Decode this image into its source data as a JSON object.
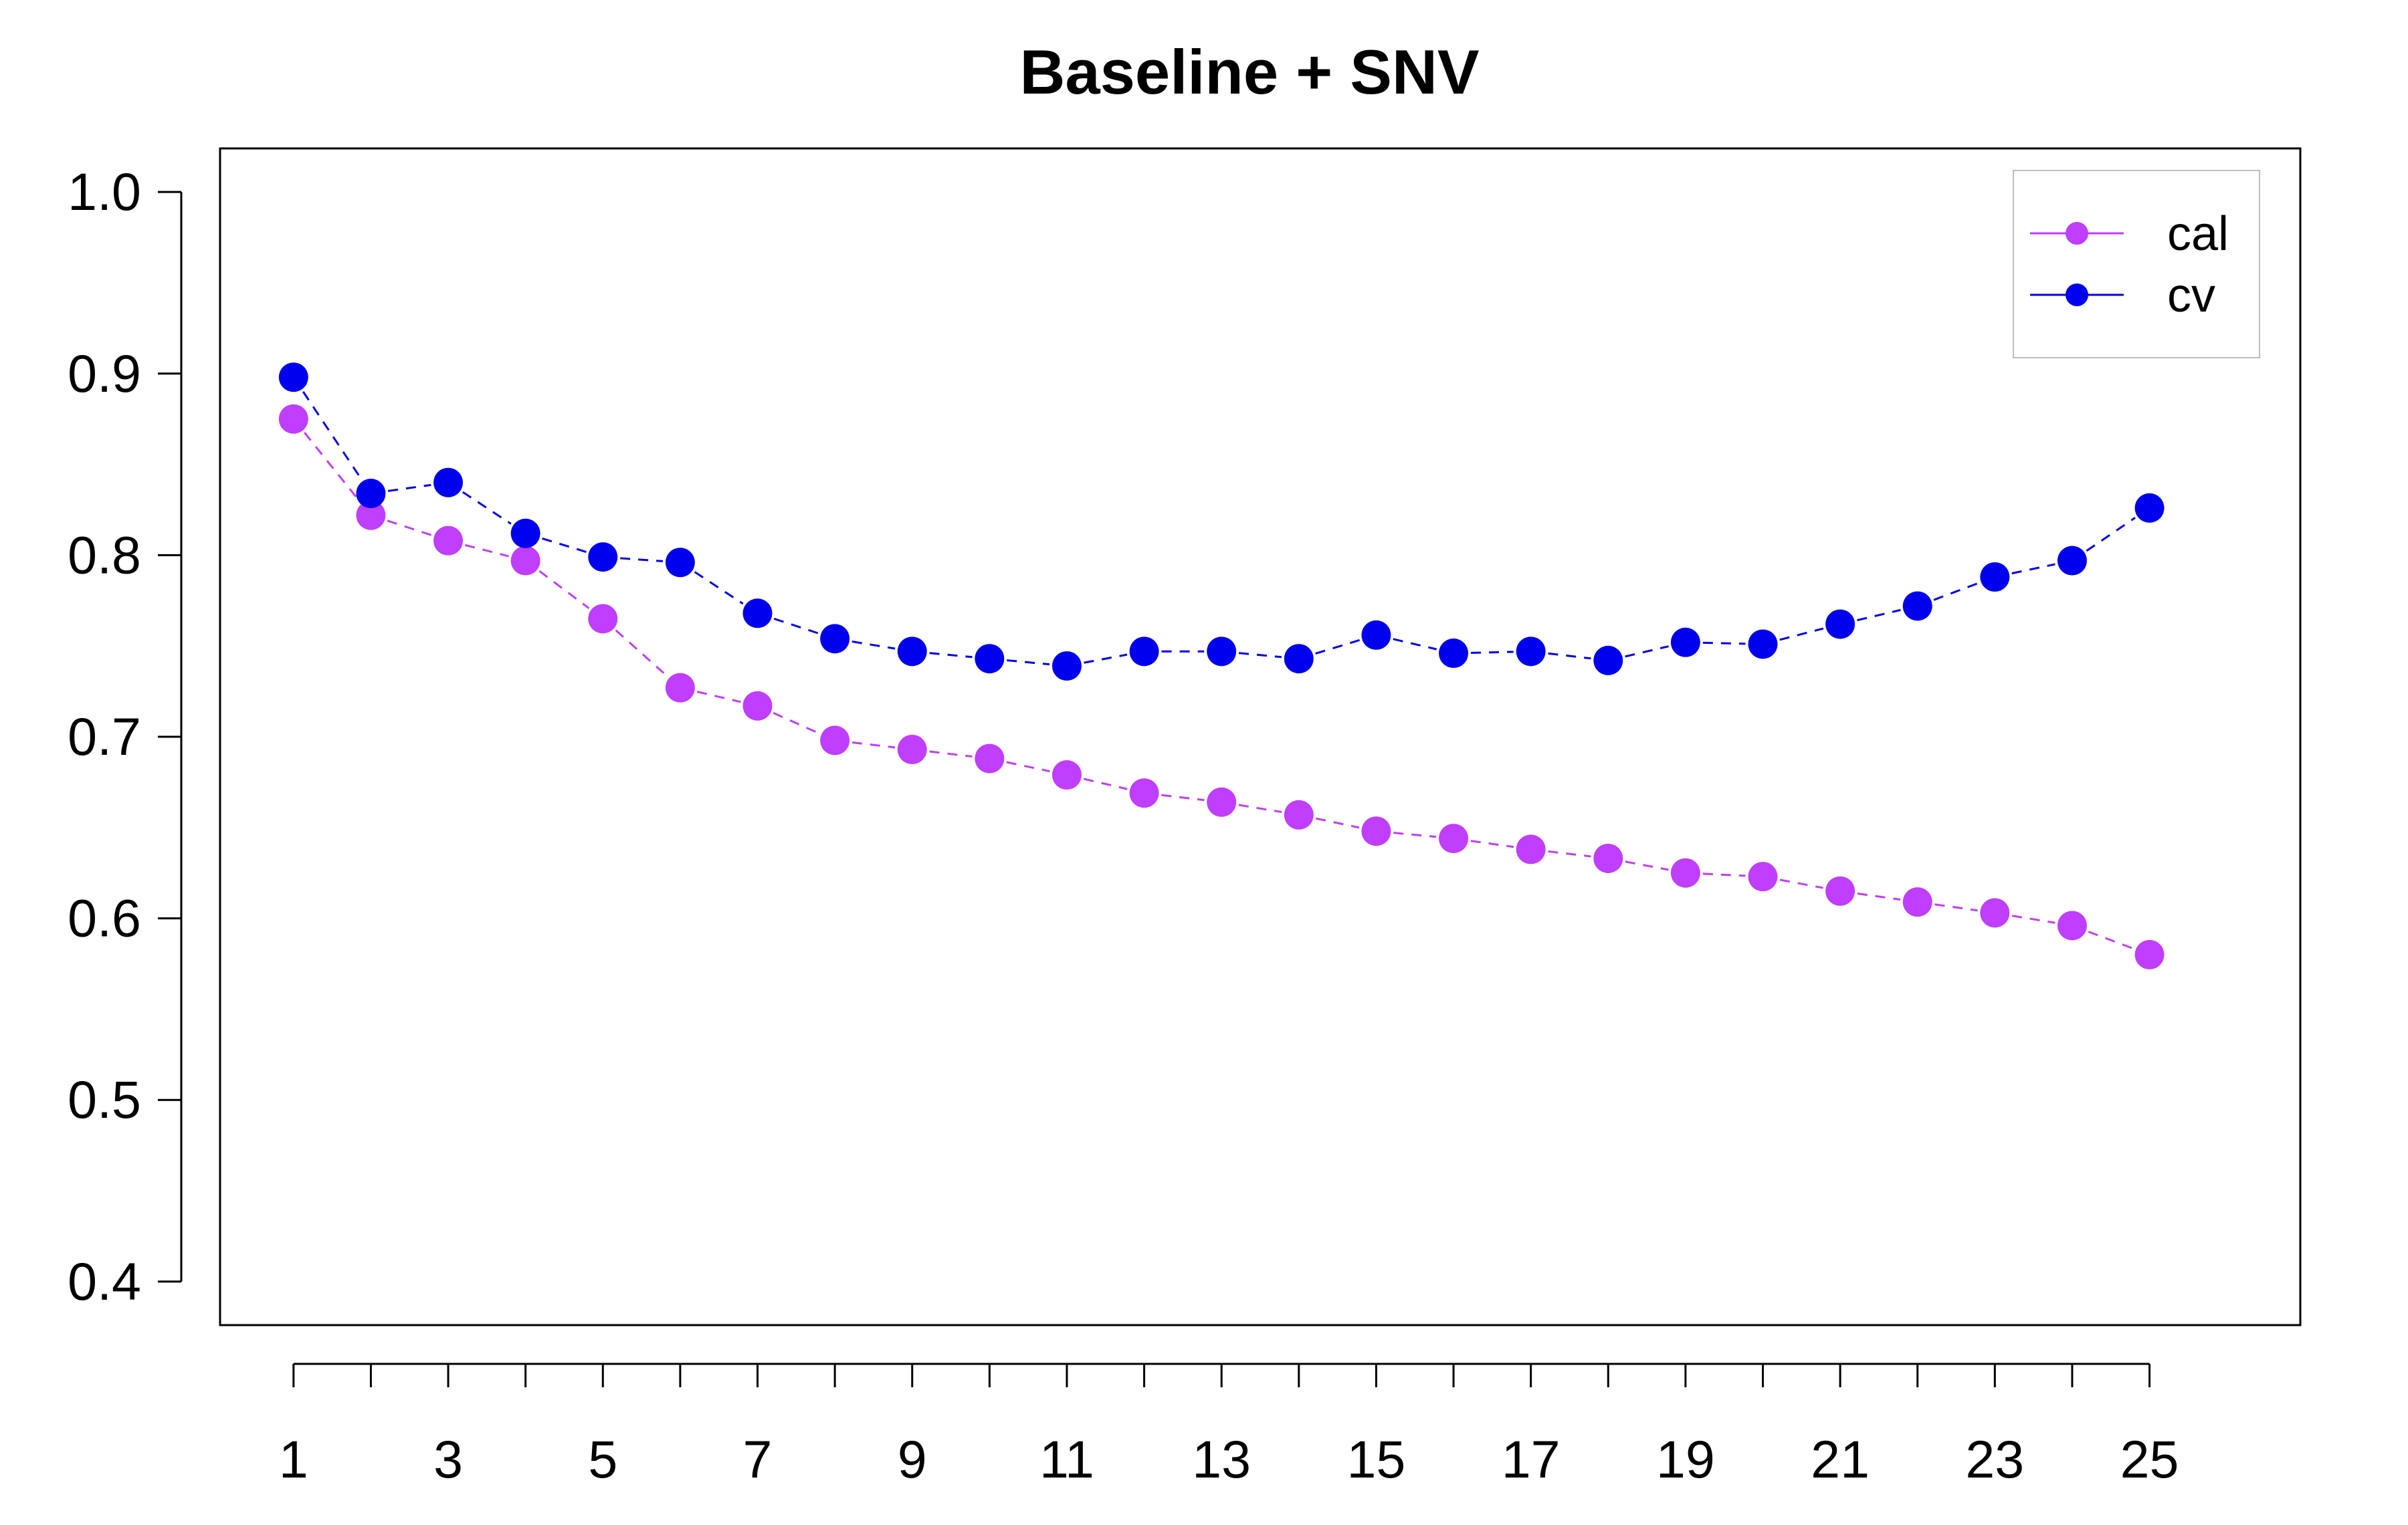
{
  "chart_data": {
    "type": "line",
    "title": "Baseline + SNV",
    "xlabel": "",
    "ylabel": "",
    "x": [
      1,
      2,
      3,
      4,
      5,
      6,
      7,
      8,
      9,
      10,
      11,
      12,
      13,
      14,
      15,
      16,
      17,
      18,
      19,
      20,
      21,
      22,
      23,
      24,
      25
    ],
    "x_tick_labels": [
      "1",
      "3",
      "5",
      "7",
      "9",
      "11",
      "13",
      "15",
      "17",
      "19",
      "21",
      "23",
      "25"
    ],
    "x_tick_label_values": [
      1,
      3,
      5,
      7,
      9,
      11,
      13,
      15,
      17,
      19,
      21,
      23,
      25
    ],
    "xlim": [
      0.05,
      26.95
    ],
    "ylim": [
      0.376,
      1.024
    ],
    "y_tick_labels": [
      "0.4",
      "0.5",
      "0.6",
      "0.7",
      "0.8",
      "0.9",
      "1.0"
    ],
    "y_tick_values": [
      0.4,
      0.5,
      0.6,
      0.7,
      0.8,
      0.9,
      1.0
    ],
    "grid": false,
    "legend_position": "top-right",
    "series": [
      {
        "name": "cal",
        "color": "#BF3EFF",
        "line_style": "dashed",
        "values": [
          0.875,
          0.822,
          0.808,
          0.797,
          0.765,
          0.727,
          0.717,
          0.698,
          0.693,
          0.688,
          0.679,
          0.669,
          0.664,
          0.657,
          0.648,
          0.644,
          0.638,
          0.633,
          0.625,
          0.623,
          0.615,
          0.609,
          0.603,
          0.596,
          0.58
        ]
      },
      {
        "name": "cv",
        "color": "#0000EE",
        "line_style": "dashed",
        "values": [
          0.898,
          0.834,
          0.84,
          0.812,
          0.799,
          0.796,
          0.768,
          0.754,
          0.747,
          0.743,
          0.739,
          0.747,
          0.747,
          0.743,
          0.756,
          0.746,
          0.747,
          0.742,
          0.752,
          0.751,
          0.762,
          0.772,
          0.788,
          0.797,
          0.826
        ]
      }
    ]
  }
}
